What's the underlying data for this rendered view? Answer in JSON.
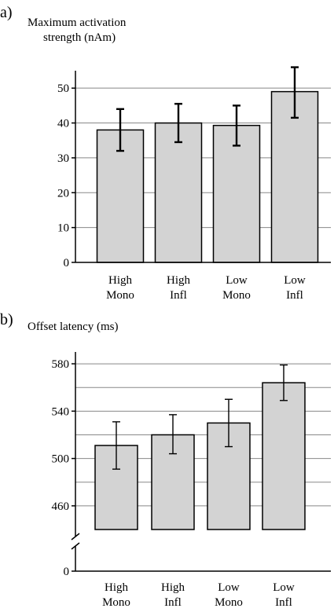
{
  "chart_data": [
    {
      "type": "bar",
      "panel_label": "a)",
      "title_lines": [
        "Maximum activation",
        "strength (nAm)"
      ],
      "categories": [
        [
          "High",
          "Mono"
        ],
        [
          "High",
          "Infl"
        ],
        [
          "Low",
          "Mono"
        ],
        [
          "Low",
          "Infl"
        ]
      ],
      "values": [
        38,
        40,
        39.3,
        49
      ],
      "error_low": [
        32,
        34.5,
        33.5,
        41.5
      ],
      "error_high": [
        44,
        45.5,
        45,
        56
      ],
      "ylim": [
        0,
        55
      ],
      "yticks": [
        0,
        10,
        20,
        30,
        40,
        50
      ],
      "grid": true,
      "bar_color": "#d3d3d3"
    },
    {
      "type": "bar",
      "panel_label": "b)",
      "title_lines": [
        "Offset latency (ms)"
      ],
      "categories": [
        [
          "High",
          "Mono"
        ],
        [
          "High",
          "Infl"
        ],
        [
          "Low",
          "Mono"
        ],
        [
          "Low",
          "Infl"
        ]
      ],
      "values": [
        511,
        520,
        530,
        564
      ],
      "error_low": [
        491,
        504,
        510,
        549
      ],
      "error_high": [
        531,
        537,
        550,
        579
      ],
      "ylim": [
        440,
        590
      ],
      "yticks": [
        460,
        500,
        540,
        580
      ],
      "axis_break": true,
      "axis_zero_label": "0",
      "grid": true,
      "bar_color": "#d3d3d3"
    }
  ]
}
